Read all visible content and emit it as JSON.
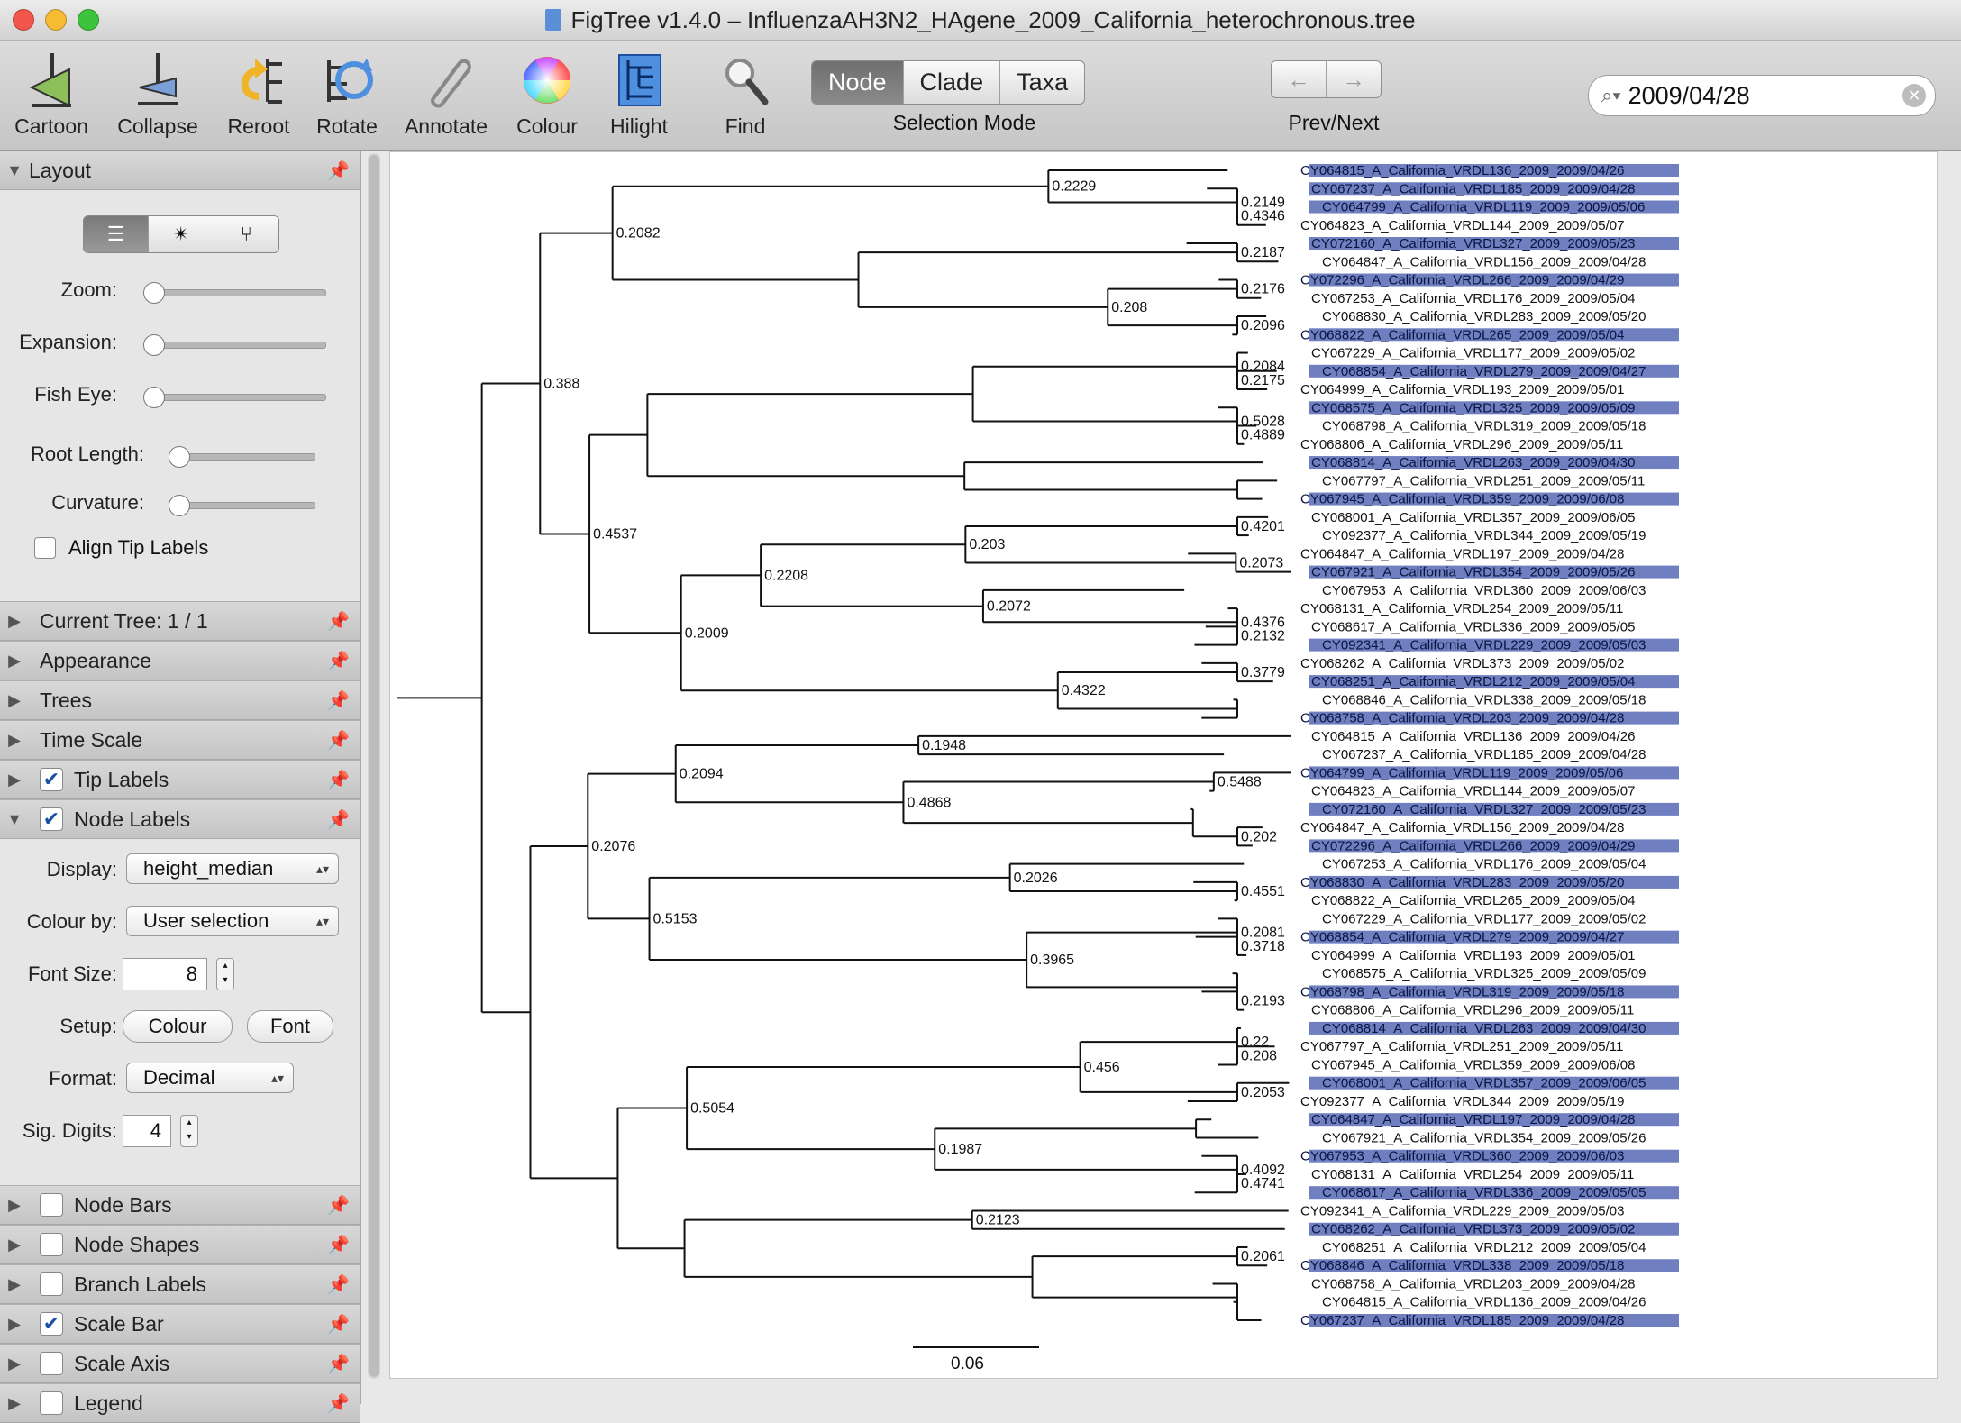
{
  "window": {
    "title": "FigTree v1.4.0 – InfluenzaAH3N2_HAgene_2009_California_heterochronous.tree"
  },
  "toolbar": {
    "cartoon": "Cartoon",
    "collapse": "Collapse",
    "reroot": "Reroot",
    "rotate": "Rotate",
    "annotate": "Annotate",
    "colour": "Colour",
    "hilight": "Hilight",
    "find": "Find",
    "selection_modes": [
      "Node",
      "Clade",
      "Taxa"
    ],
    "selection_mode_active": "Node",
    "selection_mode_label": "Selection Mode",
    "prev_next_label": "Prev/Next",
    "search_value": "2009/04/28"
  },
  "sidebar": {
    "layout": {
      "title": "Layout",
      "zoom_label": "Zoom:",
      "expansion_label": "Expansion:",
      "fisheye_label": "Fish Eye:",
      "root_length_label": "Root Length:",
      "curvature_label": "Curvature:",
      "align_tip_labels": "Align Tip Labels",
      "align_tip_labels_checked": false,
      "zoom": 0,
      "expansion": 0,
      "fisheye": 0,
      "root_length": 0,
      "curvature": 0
    },
    "sections": [
      {
        "name": "Current Tree: 1 / 1",
        "checkbox": null
      },
      {
        "name": "Appearance",
        "checkbox": null
      },
      {
        "name": "Trees",
        "checkbox": null
      },
      {
        "name": "Time Scale",
        "checkbox": null
      },
      {
        "name": "Tip Labels",
        "checkbox": true
      },
      {
        "name": "Node Labels",
        "checkbox": true
      }
    ],
    "node_labels": {
      "display_label": "Display:",
      "display_value": "height_median",
      "colour_by_label": "Colour by:",
      "colour_by_value": "User selection",
      "font_size_label": "Font Size:",
      "font_size_value": "8",
      "setup_label": "Setup:",
      "setup_colour": "Colour",
      "setup_font": "Font",
      "format_label": "Format:",
      "format_value": "Decimal",
      "sig_digits_label": "Sig. Digits:",
      "sig_digits_value": "4"
    },
    "sections_bottom": [
      {
        "name": "Node Bars",
        "checkbox": false
      },
      {
        "name": "Node Shapes",
        "checkbox": false
      },
      {
        "name": "Branch Labels",
        "checkbox": false
      },
      {
        "name": "Scale Bar",
        "checkbox": true
      },
      {
        "name": "Scale Axis",
        "checkbox": false
      },
      {
        "name": "Legend",
        "checkbox": false
      }
    ]
  },
  "tree": {
    "scale_bar_label": "0.06",
    "highlight_color": "#6f7fc0",
    "node_labels": [
      "0.4346",
      "0.2149",
      "0.2229",
      "0.2187",
      "0.2176",
      "0.2096",
      "0.208",
      "0.2082",
      "0.2175",
      "0.2084",
      "0.4889",
      "0.5028",
      "0.4201",
      "0.2073",
      "0.203",
      "0.2132",
      "0.4376",
      "0.2072",
      "0.2208",
      "0.3779",
      "0.4322",
      "0.2009",
      "0.4537",
      "0.388",
      "0.1948",
      "0.5488",
      "0.202",
      "0.4868",
      "0.2094",
      "0.4551",
      "0.2026",
      "0.3718",
      "0.2081",
      "0.2193",
      "0.3965",
      "0.5153",
      "0.2076",
      "0.208",
      "0.22",
      "0.2053",
      "0.456",
      "0.4741",
      "0.4092",
      "0.1987",
      "0.5054",
      "0.2123",
      "0.2061"
    ],
    "tip_labels": [
      "CY064815_A_California_VRDL136_2009_2009/04/26",
      "CY067237_A_California_VRDL185_2009_2009/04/28",
      "CY064799_A_California_VRDL119_2009_2009/05/06",
      "CY064823_A_California_VRDL144_2009_2009/05/07",
      "CY072160_A_California_VRDL327_2009_2009/05/23",
      "CY064847_A_California_VRDL156_2009_2009/04/28",
      "CY072296_A_California_VRDL266_2009_2009/04/29",
      "CY067253_A_California_VRDL176_2009_2009/05/04",
      "CY068830_A_California_VRDL283_2009_2009/05/20",
      "CY068822_A_California_VRDL265_2009_2009/05/04",
      "CY067229_A_California_VRDL177_2009_2009/05/02",
      "CY068854_A_California_VRDL279_2009_2009/04/27",
      "CY064999_A_California_VRDL193_2009_2009/05/01",
      "CY068575_A_California_VRDL325_2009_2009/05/09",
      "CY068798_A_California_VRDL319_2009_2009/05/18",
      "CY068806_A_California_VRDL296_2009_2009/05/11",
      "CY068814_A_California_VRDL263_2009_2009/04/30",
      "CY067797_A_California_VRDL251_2009_2009/05/11",
      "CY067945_A_California_VRDL359_2009_2009/06/08",
      "CY068001_A_California_VRDL357_2009_2009/06/05",
      "CY092377_A_California_VRDL344_2009_2009/05/19",
      "CY064847_A_California_VRDL197_2009_2009/04/28",
      "CY067921_A_California_VRDL354_2009_2009/05/26",
      "CY067953_A_California_VRDL360_2009_2009/06/03",
      "CY068131_A_California_VRDL254_2009_2009/05/11",
      "CY068617_A_California_VRDL336_2009_2009/05/05",
      "CY092341_A_California_VRDL229_2009_2009/05/03",
      "CY068262_A_California_VRDL373_2009_2009/05/02",
      "CY068251_A_California_VRDL212_2009_2009/05/04",
      "CY068846_A_California_VRDL338_2009_2009/05/18",
      "CY068758_A_California_VRDL203_2009_2009/04/28"
    ]
  }
}
